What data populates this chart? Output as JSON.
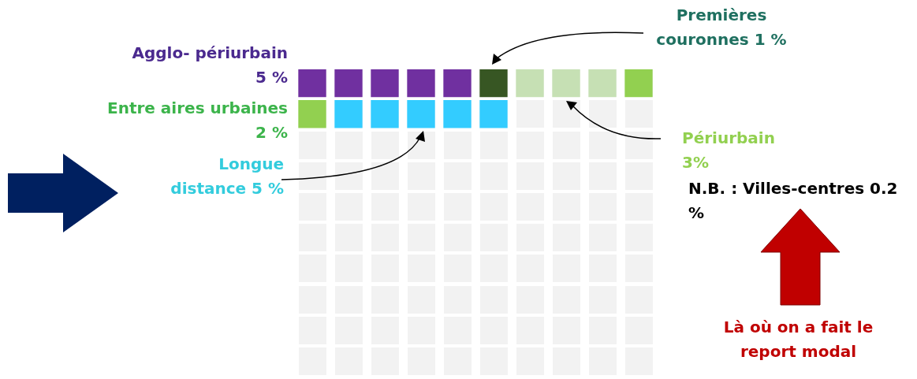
{
  "chart_data": {
    "type": "other",
    "categories": [
      "Agglo- périurbain",
      "Premières couronnes",
      "Périurbain",
      "Entre aires urbaines",
      "Longue distance"
    ],
    "values": [
      5,
      1,
      3,
      2,
      5
    ],
    "value_labels": [
      "5 %",
      "1 %",
      "3%",
      "2 %",
      "5 %"
    ],
    "colors": [
      "#7030a0",
      "#375623",
      "#c6e0b4",
      "#92d050",
      "#33ccff"
    ],
    "annotations": [
      "N.B. : Villes-centres 0.2 %",
      "Là où on a fait le report modal"
    ]
  }
}
